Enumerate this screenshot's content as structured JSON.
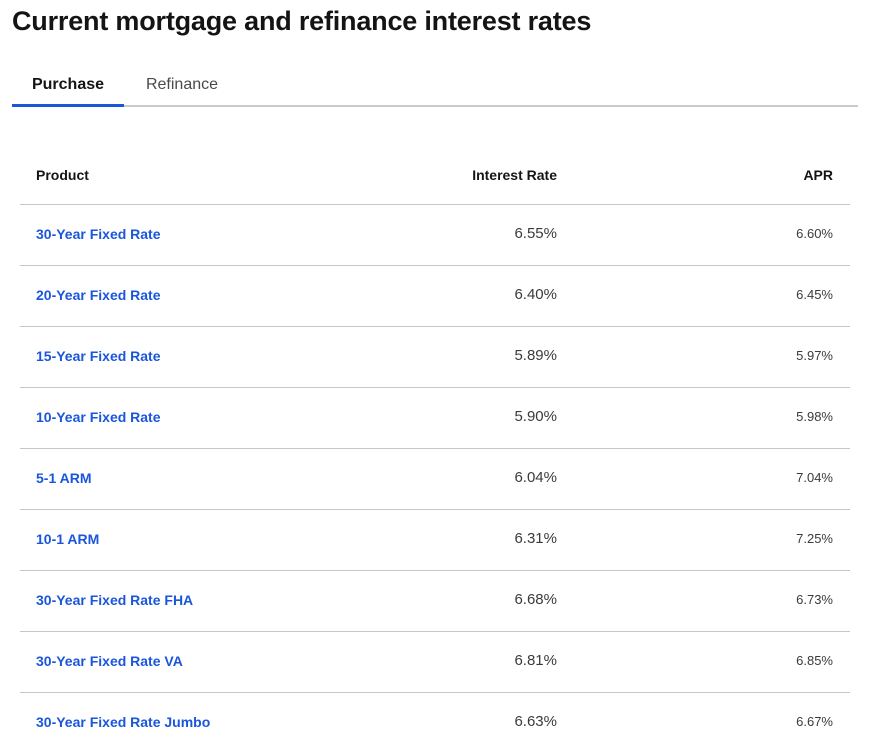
{
  "page": {
    "title": "Current mortgage and refinance interest rates"
  },
  "tabs": [
    {
      "label": "Purchase",
      "active": true
    },
    {
      "label": "Refinance",
      "active": false
    }
  ],
  "table": {
    "headers": {
      "product": "Product",
      "rate": "Interest Rate",
      "apr": "APR"
    },
    "rows": [
      {
        "product": "30-Year Fixed Rate",
        "rate": "6.55%",
        "apr": "6.60%"
      },
      {
        "product": "20-Year Fixed Rate",
        "rate": "6.40%",
        "apr": "6.45%"
      },
      {
        "product": "15-Year Fixed Rate",
        "rate": "5.89%",
        "apr": "5.97%"
      },
      {
        "product": "10-Year Fixed Rate",
        "rate": "5.90%",
        "apr": "5.98%"
      },
      {
        "product": "5-1 ARM",
        "rate": "6.04%",
        "apr": "7.04%"
      },
      {
        "product": "10-1 ARM",
        "rate": "6.31%",
        "apr": "7.25%"
      },
      {
        "product": "30-Year Fixed Rate FHA",
        "rate": "6.68%",
        "apr": "6.73%"
      },
      {
        "product": "30-Year Fixed Rate VA",
        "rate": "6.81%",
        "apr": "6.85%"
      },
      {
        "product": "30-Year Fixed Rate Jumbo",
        "rate": "6.63%",
        "apr": "6.67%"
      }
    ]
  },
  "colors": {
    "link": "#1a56db",
    "tab_underline": "#1a56db",
    "divider": "#c3c6ca"
  }
}
